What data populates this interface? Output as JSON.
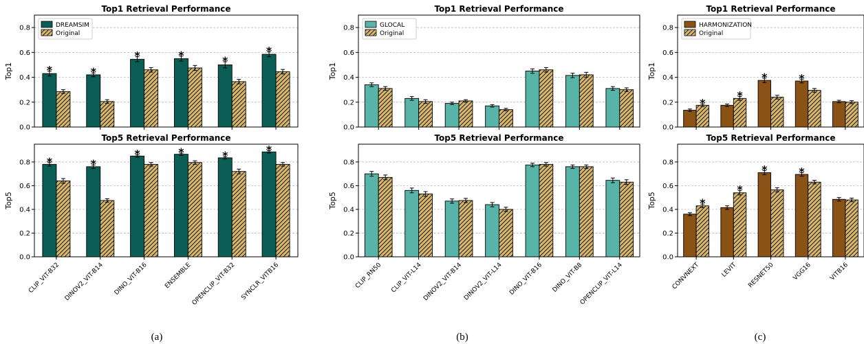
{
  "colors": {
    "dreamsim": "#0b5e55",
    "glocal": "#58b4a9",
    "harmonization": "#8b5216",
    "original": "#d8b868"
  },
  "captions": [
    "(a)",
    "(b)",
    "(c)"
  ],
  "chart_data": [
    {
      "panel": "a",
      "type": "bar",
      "title": "Top1 Retrieval Performance",
      "ylabel": "Top1",
      "ylim": [
        0,
        0.9
      ],
      "yticks": [
        "0.0",
        "0.2",
        "0.4",
        "0.6",
        "0.8"
      ],
      "legend_position": "top-left",
      "grid": "y-dashed",
      "categories": [
        "CLIP_VIT-B32",
        "DINOV2_VIT-B14",
        "DINO_VIT-B16",
        "ENSEMBLE",
        "OPENCLIP_VIT-B32",
        "SYNCLR_VITB16"
      ],
      "series": [
        {
          "name": "DREAMSIM",
          "values": [
            0.43,
            0.42,
            0.545,
            0.55,
            0.5,
            0.585
          ],
          "errors": [
            0.02,
            0.015,
            0.02,
            0.02,
            0.025,
            0.02
          ],
          "significant": [
            true,
            true,
            true,
            true,
            true,
            true
          ]
        },
        {
          "name": "Original",
          "values": [
            0.285,
            0.205,
            0.46,
            0.475,
            0.365,
            0.445
          ],
          "errors": [
            0.015,
            0.015,
            0.018,
            0.02,
            0.018,
            0.018
          ],
          "significant": [
            false,
            false,
            false,
            false,
            false,
            false
          ]
        }
      ]
    },
    {
      "panel": "a",
      "type": "bar",
      "title": "Top5 Retrieval Performance",
      "ylabel": "Top5",
      "ylim": [
        0,
        0.95
      ],
      "yticks": [
        "0.0",
        "0.2",
        "0.4",
        "0.6",
        "0.8"
      ],
      "grid": "y-dashed",
      "categories": [
        "CLIP_VIT-B32",
        "DINOV2_VIT-B14",
        "DINO_VIT-B16",
        "ENSEMBLE",
        "OPENCLIP_VIT-B32",
        "SYNCLR_VITB16"
      ],
      "series": [
        {
          "name": "DREAMSIM",
          "values": [
            0.78,
            0.76,
            0.85,
            0.865,
            0.835,
            0.885
          ],
          "errors": [
            0.015,
            0.015,
            0.01,
            0.01,
            0.01,
            0.01
          ],
          "significant": [
            true,
            true,
            true,
            true,
            true,
            true
          ]
        },
        {
          "name": "Original",
          "values": [
            0.64,
            0.475,
            0.78,
            0.795,
            0.72,
            0.78
          ],
          "errors": [
            0.02,
            0.015,
            0.015,
            0.015,
            0.02,
            0.015
          ],
          "significant": [
            false,
            false,
            false,
            false,
            false,
            false
          ]
        }
      ]
    },
    {
      "panel": "b",
      "type": "bar",
      "title": "Top1 Retrieval Performance",
      "ylabel": "Top1",
      "ylim": [
        0,
        0.9
      ],
      "yticks": [
        "0.0",
        "0.2",
        "0.4",
        "0.6",
        "0.8"
      ],
      "legend_position": "top-left",
      "grid": "y-dashed",
      "categories": [
        "CLIP_RN50",
        "CLIP_VIT-L14",
        "DINOV2_VIT-B14",
        "DINOV2_VIT-L14",
        "DINO_VIT-B16",
        "DINO_VIT-B8",
        "OPENCLIP_VIT-L14"
      ],
      "series": [
        {
          "name": "GLOCAL",
          "values": [
            0.34,
            0.23,
            0.19,
            0.17,
            0.45,
            0.415,
            0.31
          ],
          "errors": [
            0.015,
            0.015,
            0.01,
            0.01,
            0.018,
            0.018,
            0.015
          ],
          "significant": [
            false,
            false,
            false,
            false,
            false,
            false,
            false
          ]
        },
        {
          "name": "Original",
          "values": [
            0.31,
            0.205,
            0.21,
            0.14,
            0.46,
            0.42,
            0.3
          ],
          "errors": [
            0.015,
            0.015,
            0.01,
            0.01,
            0.018,
            0.02,
            0.015
          ],
          "significant": [
            false,
            false,
            false,
            false,
            false,
            false,
            false
          ]
        }
      ]
    },
    {
      "panel": "b",
      "type": "bar",
      "title": "Top5 Retrieval Performance",
      "ylabel": "Top5",
      "ylim": [
        0,
        0.95
      ],
      "yticks": [
        "0.0",
        "0.2",
        "0.4",
        "0.6",
        "0.8"
      ],
      "grid": "y-dashed",
      "categories": [
        "CLIP_RN50",
        "CLIP_VIT-L14",
        "DINOV2_VIT-B14",
        "DINOV2_VIT-L14",
        "DINO_VIT-B16",
        "DINO_VIT-B8",
        "OPENCLIP_VIT-L14"
      ],
      "series": [
        {
          "name": "GLOCAL",
          "values": [
            0.7,
            0.56,
            0.47,
            0.44,
            0.775,
            0.76,
            0.645
          ],
          "errors": [
            0.02,
            0.02,
            0.018,
            0.018,
            0.015,
            0.015,
            0.02
          ],
          "significant": [
            false,
            false,
            false,
            false,
            false,
            false,
            false
          ]
        },
        {
          "name": "Original",
          "values": [
            0.67,
            0.53,
            0.475,
            0.4,
            0.78,
            0.76,
            0.63
          ],
          "errors": [
            0.02,
            0.02,
            0.018,
            0.018,
            0.015,
            0.015,
            0.02
          ],
          "significant": [
            false,
            false,
            false,
            false,
            false,
            false,
            false
          ]
        }
      ]
    },
    {
      "panel": "c",
      "type": "bar",
      "title": "Top1 Retrieval Performance",
      "ylabel": "Top1",
      "ylim": [
        0,
        0.9
      ],
      "yticks": [
        "0.0",
        "0.2",
        "0.4",
        "0.6",
        "0.8"
      ],
      "legend_position": "top-left",
      "grid": "y-dashed",
      "categories": [
        "CONVNEXT",
        "LEVIT",
        "RESNET50",
        "VGG16",
        "VITB16"
      ],
      "series": [
        {
          "name": "HARMONIZATION",
          "values": [
            0.135,
            0.175,
            0.375,
            0.37,
            0.205
          ],
          "errors": [
            0.01,
            0.01,
            0.018,
            0.015,
            0.01
          ],
          "significant": [
            false,
            false,
            true,
            true,
            false
          ]
        },
        {
          "name": "Original",
          "values": [
            0.175,
            0.23,
            0.24,
            0.295,
            0.2
          ],
          "errors": [
            0.01,
            0.015,
            0.015,
            0.015,
            0.012
          ],
          "significant": [
            true,
            true,
            false,
            false,
            false
          ]
        }
      ]
    },
    {
      "panel": "c",
      "type": "bar",
      "title": "Top5 Retrieval Performance",
      "ylabel": "Top5",
      "ylim": [
        0,
        0.95
      ],
      "yticks": [
        "0.0",
        "0.2",
        "0.4",
        "0.6",
        "0.8"
      ],
      "grid": "y-dashed",
      "categories": [
        "CONVNEXT",
        "LEVIT",
        "RESNET50",
        "VGG16",
        "VITB16"
      ],
      "series": [
        {
          "name": "HARMONIZATION",
          "values": [
            0.36,
            0.415,
            0.71,
            0.695,
            0.485
          ],
          "errors": [
            0.012,
            0.015,
            0.018,
            0.015,
            0.015
          ],
          "significant": [
            false,
            false,
            true,
            true,
            false
          ]
        },
        {
          "name": "Original",
          "values": [
            0.43,
            0.54,
            0.565,
            0.63,
            0.48
          ],
          "errors": [
            0.015,
            0.018,
            0.018,
            0.015,
            0.015
          ],
          "significant": [
            true,
            true,
            false,
            false,
            false
          ]
        }
      ]
    }
  ]
}
